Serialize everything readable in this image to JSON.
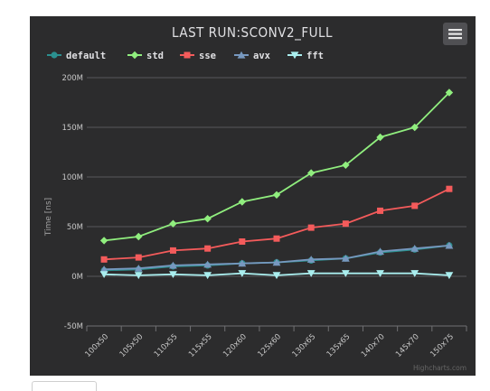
{
  "chart_data": {
    "type": "line",
    "title": "LAST RUN:SCONV2_FULL",
    "ylabel": "Time [ns]",
    "xlabel": "",
    "categories": [
      "100x50",
      "105x50",
      "110x55",
      "115x55",
      "120x60",
      "125x60",
      "130x65",
      "135x65",
      "140x70",
      "145x70",
      "150x75"
    ],
    "ylim": [
      -50,
      200
    ],
    "yticks": [
      -50,
      0,
      50,
      100,
      150,
      200
    ],
    "ytick_labels": [
      "-50M",
      "0M",
      "50M",
      "100M",
      "150M",
      "200M"
    ],
    "grid": true,
    "legend_position": "top-left",
    "series": [
      {
        "name": "default",
        "color": "#2b908f",
        "marker": "circle",
        "values": [
          6,
          7,
          10,
          11,
          13,
          14,
          16,
          18,
          24,
          27,
          31
        ]
      },
      {
        "name": "std",
        "color": "#90ee7e",
        "marker": "diamond",
        "values": [
          36,
          40,
          53,
          58,
          75,
          82,
          104,
          112,
          140,
          150,
          185
        ]
      },
      {
        "name": "sse",
        "color": "#f45b5b",
        "marker": "square",
        "values": [
          17,
          19,
          26,
          28,
          35,
          38,
          49,
          53,
          66,
          71,
          88
        ]
      },
      {
        "name": "avx",
        "color": "#7798bf",
        "marker": "triangle",
        "values": [
          7,
          8,
          11,
          12,
          13,
          14,
          17,
          18,
          25,
          28,
          31
        ]
      },
      {
        "name": "fft",
        "color": "#aaeeee",
        "marker": "triangle-down",
        "values": [
          2,
          1,
          2,
          1,
          3,
          1,
          3,
          3,
          3,
          3,
          1
        ]
      }
    ]
  },
  "credit": "Highcharts.com"
}
